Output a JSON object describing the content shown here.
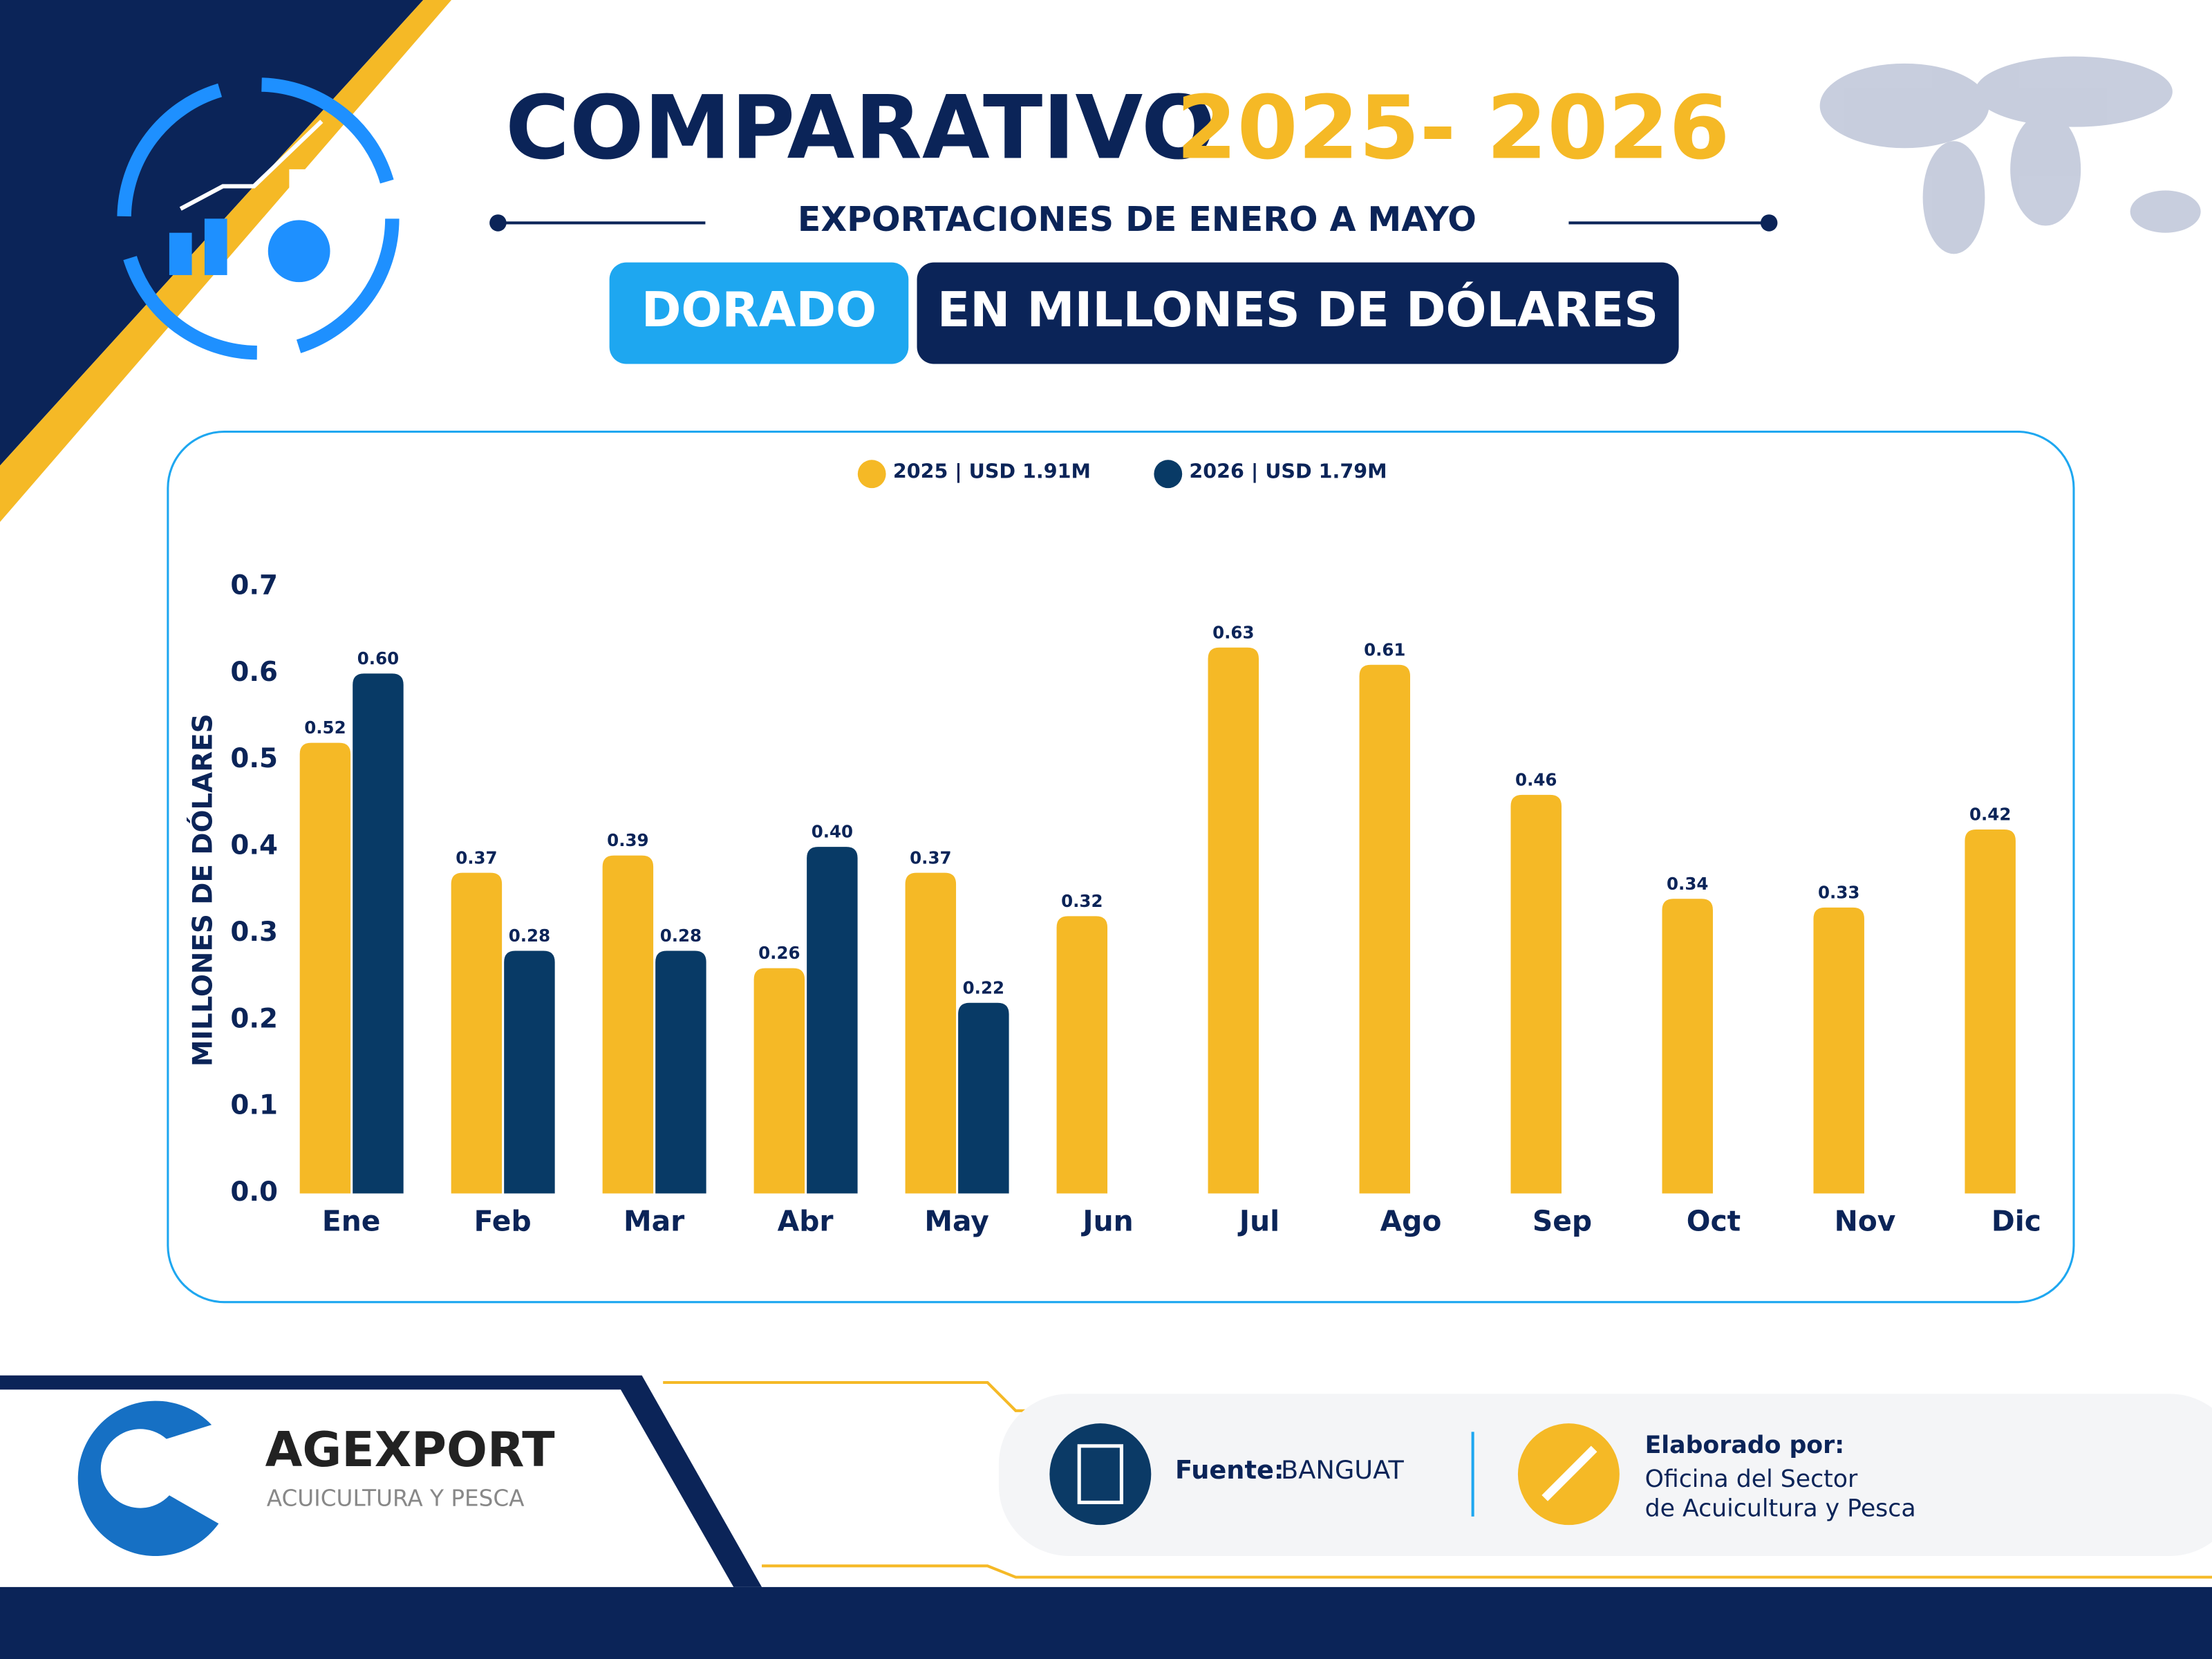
{
  "header": {
    "title_main": "COMPARATIVO",
    "title_years": "2025- 2026",
    "subtitle": "EXPORTACIONES DE ENERO A MAYO",
    "product": "DORADO",
    "unit": "EN MILLONES DE DÓLARES"
  },
  "chart_data": {
    "type": "bar",
    "y_label": "MILLONES DE DÓLARES",
    "categories": [
      "Ene",
      "Feb",
      "Mar",
      "Abr",
      "May",
      "Jun",
      "Jul",
      "Ago",
      "Sep",
      "Oct",
      "Nov",
      "Dic"
    ],
    "series": [
      {
        "name": "2025 | USD 1.91M",
        "color": "#f5b926",
        "values": [
          0.52,
          0.37,
          0.39,
          0.26,
          0.37,
          0.32,
          0.63,
          0.61,
          0.46,
          0.34,
          0.33,
          0.42
        ]
      },
      {
        "name": "2026 | USD 1.79M",
        "color": "#083a66",
        "values": [
          0.6,
          0.28,
          0.28,
          0.4,
          0.22,
          null,
          null,
          null,
          null,
          null,
          null,
          null
        ],
        "value_labels": [
          "0.60",
          "0.28",
          "0.28",
          "0.40",
          "0.22",
          null,
          null,
          null,
          null,
          null,
          null,
          null
        ]
      }
    ],
    "ylim": [
      0,
      0.7
    ],
    "yticks": [
      {
        "value": 0,
        "label": "0.0"
      },
      {
        "value": 0.1,
        "label": "0.1"
      },
      {
        "value": 0.2,
        "label": "0.2"
      },
      {
        "value": 0.3,
        "label": "0.3"
      },
      {
        "value": 0.4,
        "label": "0.4"
      },
      {
        "value": 0.5,
        "label": "0.5"
      },
      {
        "value": 0.6,
        "label": "0.6"
      },
      {
        "value": 0.7,
        "label": "0.7"
      }
    ],
    "grid": false,
    "legend": "top"
  },
  "footer": {
    "brand": "AGEXPORT",
    "brand_sub": "ACUICULTURA Y PESCA",
    "source_label": "Fuente:",
    "source": "BANGUAT",
    "made_by_label": "Elaborado por:",
    "made_by_line1": "Oficina del Sector",
    "made_by_line2": "de Acuicultura y Pesca"
  }
}
